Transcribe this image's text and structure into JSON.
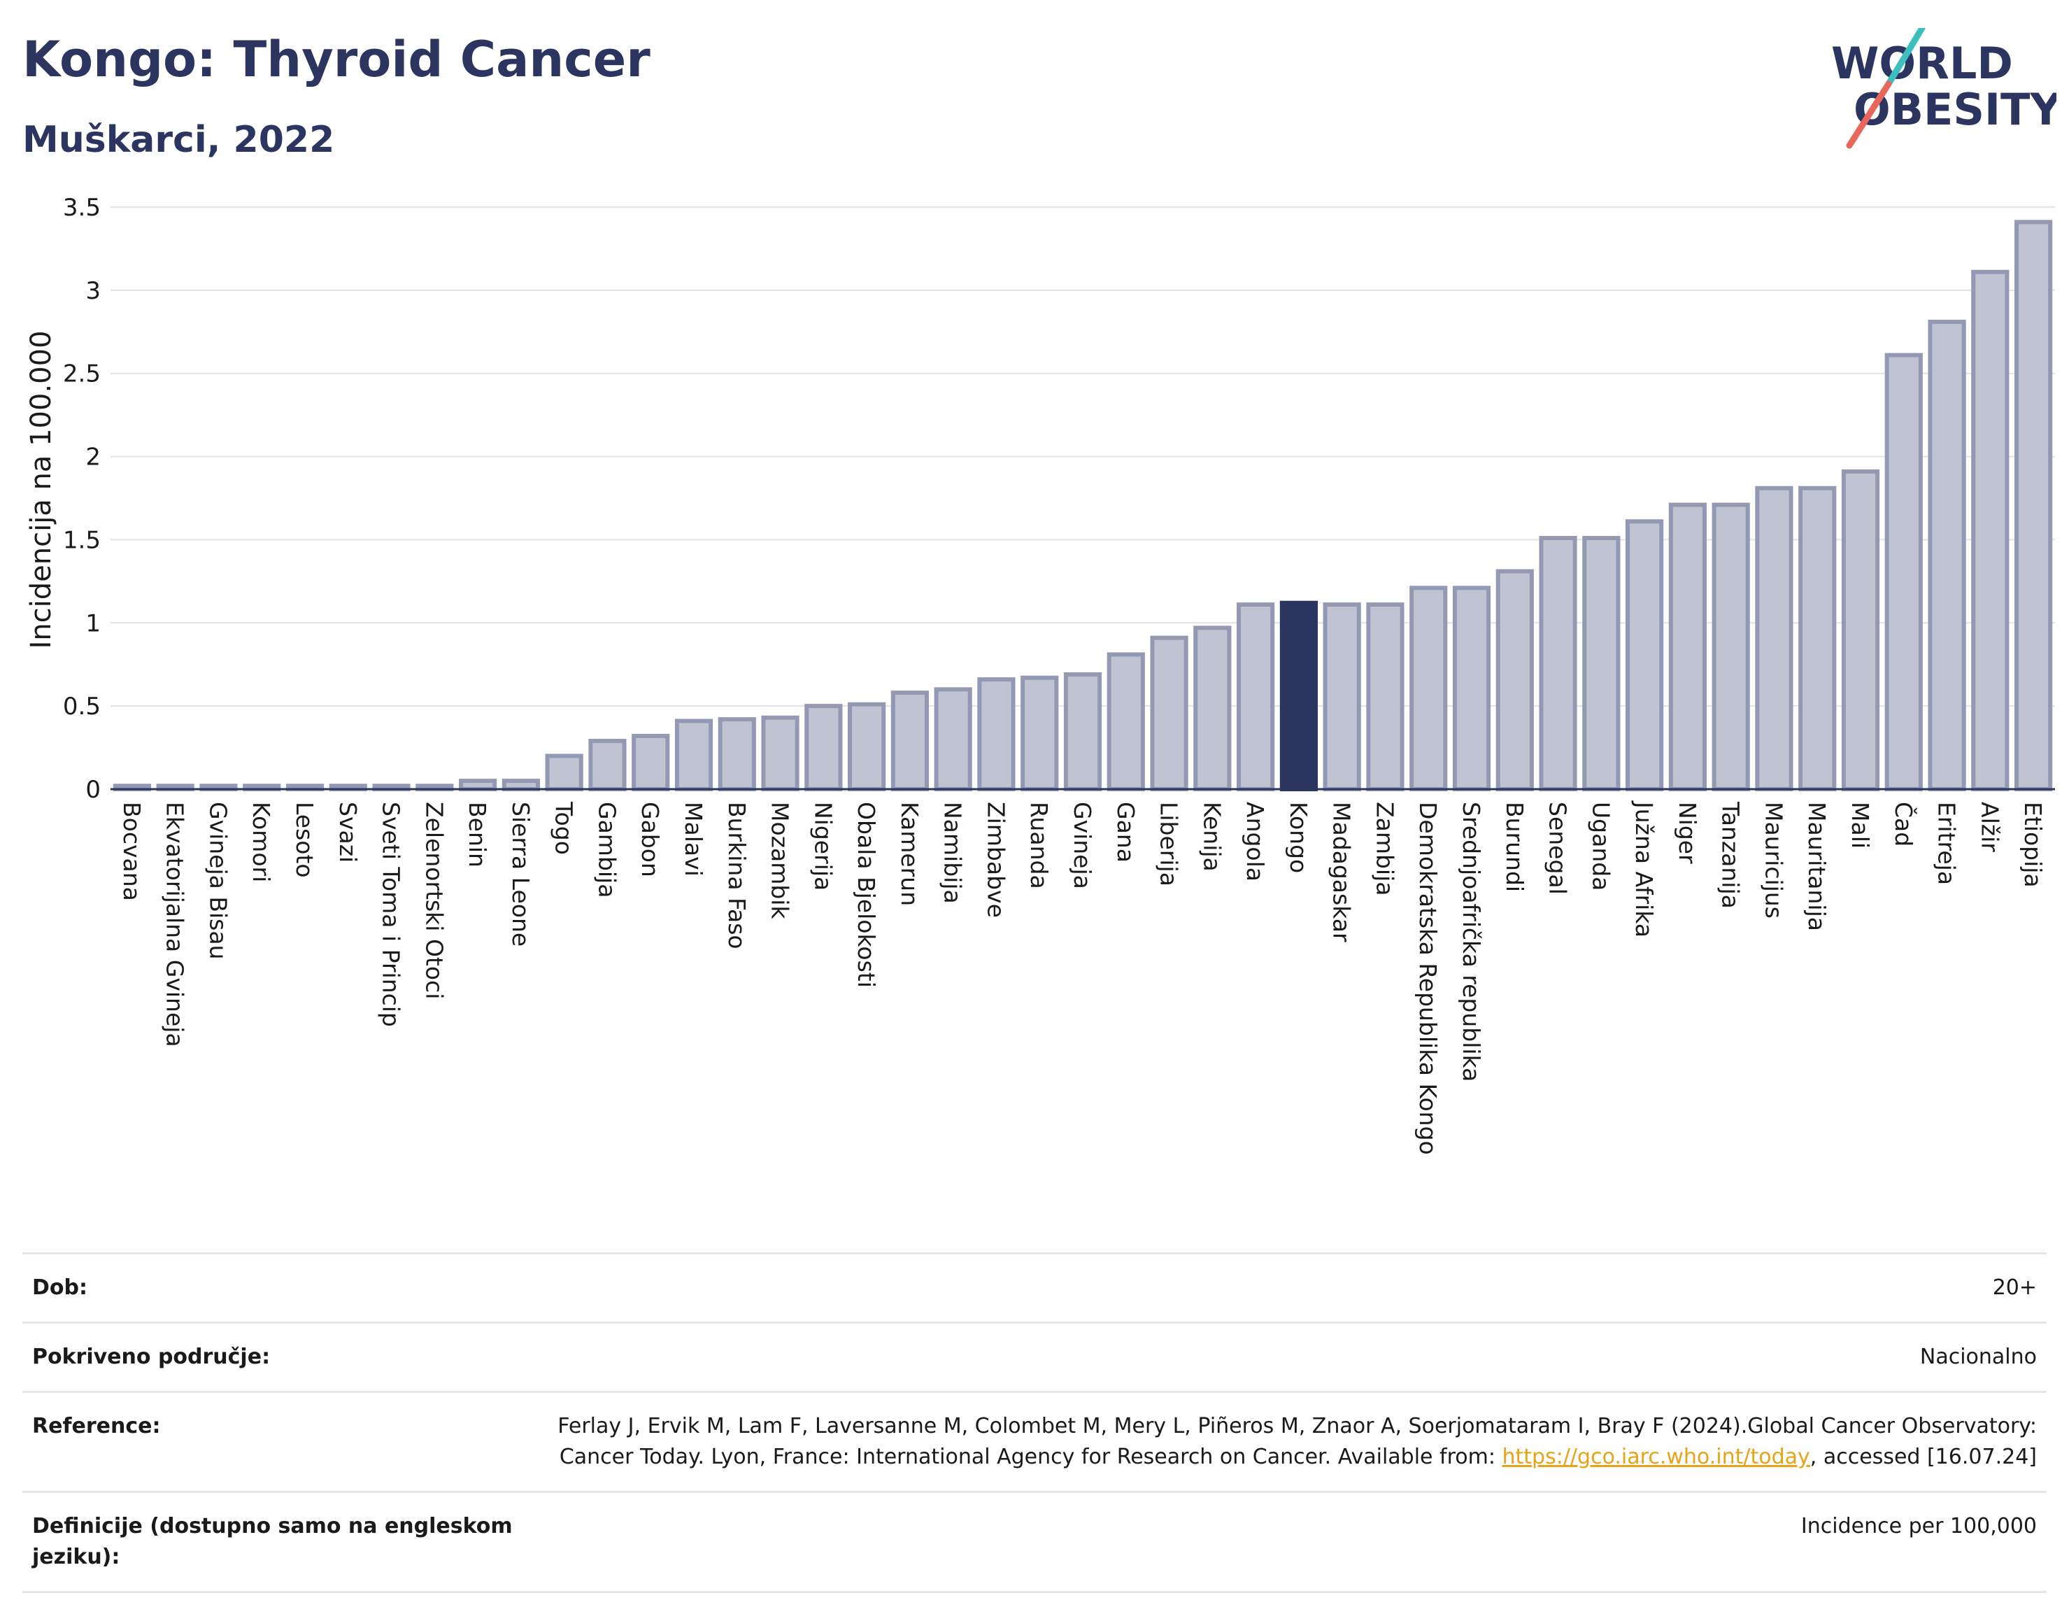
{
  "header": {
    "title": "Kongo: Thyroid Cancer",
    "subtitle": "Muškarci, 2022"
  },
  "logo": {
    "line1": "WORLD",
    "line2": "OBESITY"
  },
  "colors": {
    "bar": "#c0c3d1",
    "bar_border": "#9499b3",
    "highlight": "#2b3560",
    "title": "#2b3560",
    "link": "#e8a317"
  },
  "chart_data": {
    "type": "bar",
    "ylabel": "Incidencija na 100.000",
    "ylim": [
      0,
      3.5
    ],
    "yticks": [
      "0",
      "0.5",
      "1",
      "1.5",
      "2",
      "2.5",
      "3",
      "3.5"
    ],
    "highlight": "Kongo",
    "grid": true,
    "categories": [
      "Bocvana",
      "Ekvatorijalna Gvineja",
      "Gvineja Bisau",
      "Komori",
      "Lesoto",
      "Svazi",
      "Sveti Toma i Princip",
      "Zelenortski Otoci",
      "Benin",
      "Sierra Leone",
      "Togo",
      "Gambija",
      "Gabon",
      "Malavi",
      "Burkina Faso",
      "Mozambik",
      "Nigerija",
      "Obala Bjelokosti",
      "Kamerun",
      "Namibija",
      "Zimbabve",
      "Ruanda",
      "Gvineja",
      "Gana",
      "Liberija",
      "Kenija",
      "Angola",
      "Kongo",
      "Madagaskar",
      "Zambija",
      "Demokratska Republika Kongo",
      "Srednjoafrička republika",
      "Burundi",
      "Senegal",
      "Uganda",
      "Južna Afrika",
      "Niger",
      "Tanzanija",
      "Mauricijus",
      "Mauritanija",
      "Mali",
      "Čad",
      "Eritreja",
      "Alžir",
      "Etiopija"
    ],
    "values": [
      0.02,
      0.02,
      0.02,
      0.02,
      0.02,
      0.02,
      0.02,
      0.02,
      0.05,
      0.05,
      0.2,
      0.29,
      0.32,
      0.41,
      0.42,
      0.43,
      0.5,
      0.51,
      0.58,
      0.6,
      0.66,
      0.67,
      0.69,
      0.81,
      0.91,
      0.97,
      1.11,
      1.12,
      1.11,
      1.11,
      1.21,
      1.21,
      1.31,
      1.51,
      1.51,
      1.61,
      1.71,
      1.71,
      1.81,
      1.81,
      1.91,
      2.61,
      2.81,
      3.11,
      3.41
    ]
  },
  "meta": {
    "age_label": "Dob:",
    "age_value": "20+",
    "coverage_label": "Pokriveno područje:",
    "coverage_value": "Nacionalno",
    "reference_label": "Reference:",
    "reference_text1": "Ferlay J, Ervik M, Lam F, Laversanne M, Colombet M, Mery L, Piñeros M, Znaor A, Soerjomataram I, Bray F (2024).Global Cancer Observatory: Cancer Today. Lyon, France: International Agency for Research on Cancer. Available from: ",
    "reference_link": "https://gco.iarc.who.int/today",
    "reference_text2": ", accessed [16.07.24]",
    "definition_label": "Definicije (dostupno samo na engleskom jeziku):",
    "definition_value": "Incidence per 100,000"
  }
}
